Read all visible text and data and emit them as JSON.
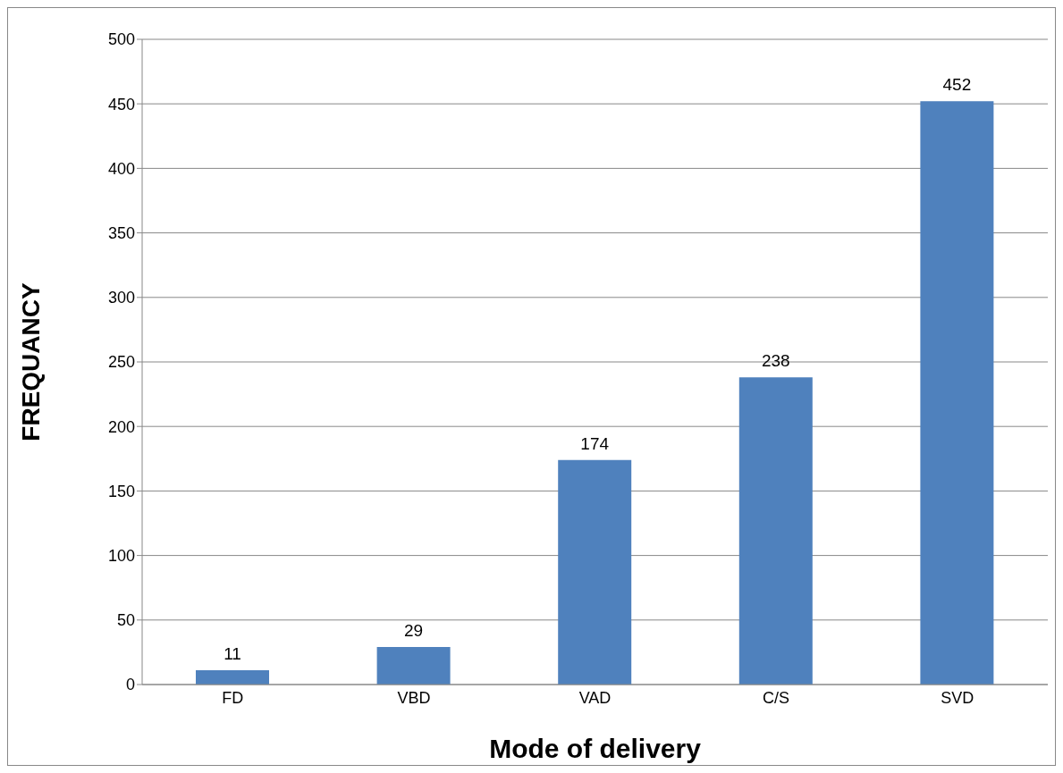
{
  "chart_data": {
    "type": "bar",
    "xlabel": "Mode of delivery",
    "ylabel": "FREQUANCY",
    "categories": [
      "FD",
      "VBD",
      "VAD",
      "C/S",
      "SVD"
    ],
    "values": [
      11,
      29,
      174,
      238,
      452
    ],
    "color": "#4f81bd",
    "ylim": [
      0,
      500
    ],
    "yticks": [
      0,
      50,
      100,
      150,
      200,
      250,
      300,
      350,
      400,
      450,
      500
    ],
    "grid": "y",
    "data_labels": true
  }
}
